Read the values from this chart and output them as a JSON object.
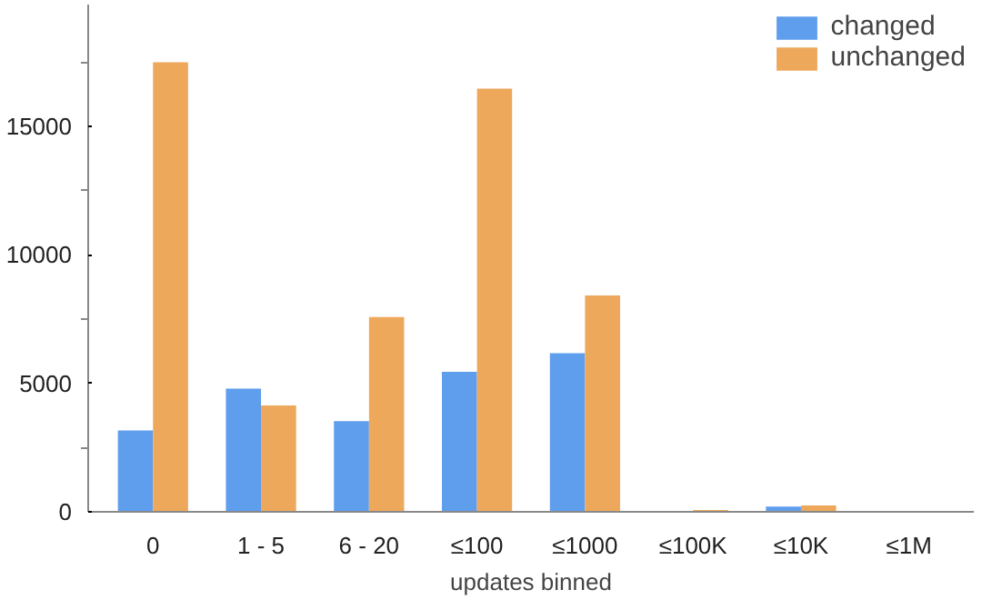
{
  "chart_data": {
    "type": "bar",
    "xlabel": "updates binned",
    "categories": [
      "0",
      "1 - 5",
      "6 - 20",
      "≤100",
      "≤1000",
      "≤100K",
      "≤10K",
      "≤1M"
    ],
    "series": [
      {
        "name": "changed",
        "color": "#5f9ded",
        "values": [
          3170,
          4800,
          3530,
          5450,
          6180,
          0,
          200,
          0
        ]
      },
      {
        "name": "unchanged",
        "color": "#eda85c",
        "values": [
          17500,
          4140,
          7580,
          16480,
          8420,
          70,
          250,
          0
        ]
      }
    ],
    "ylim": [
      0,
      19750
    ],
    "yticks": [
      0,
      {
        "value": 2500,
        "label": null
      },
      5000,
      {
        "value": 7500,
        "label": null
      },
      10000,
      {
        "value": 12500,
        "label": null
      },
      15000,
      {
        "value": 17500,
        "label": null
      }
    ],
    "grid": false,
    "legend": "top right"
  }
}
